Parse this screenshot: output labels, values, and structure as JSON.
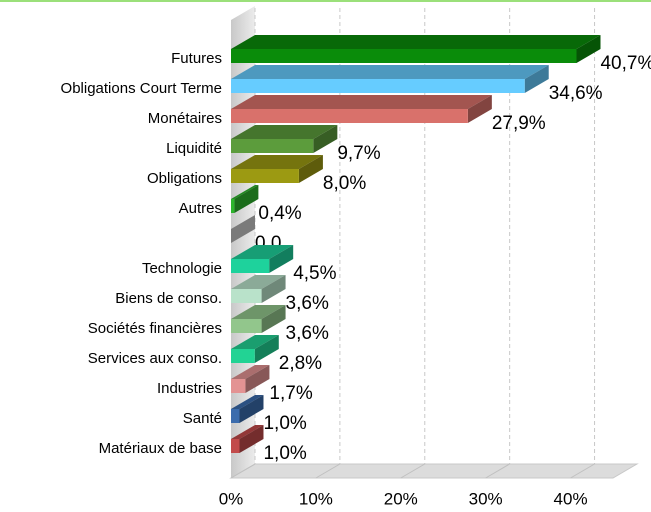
{
  "chart_data": {
    "type": "bar3d_horizontal",
    "categories": [
      "Futures",
      "Obligations Court Terme",
      "Monétaires",
      "Liquidité",
      "Obligations",
      "Autres",
      null,
      "Technologie",
      "Biens de conso.",
      "Sociétés financières",
      "Services aux conso.",
      "Industries",
      "Santé",
      "Matériaux de base"
    ],
    "values": [
      40.7,
      34.6,
      27.9,
      9.7,
      8.0,
      0.4,
      0,
      4.5,
      3.6,
      3.6,
      2.8,
      1.7,
      1.0,
      1.0
    ],
    "value_labels": [
      "40,7%",
      "34,6%",
      "27,9%",
      "9,7%",
      "8,0%",
      "0,4%",
      "0,0",
      "4,5%",
      "3,6%",
      "3,6%",
      "2,8%",
      "1,7%",
      "1,0%",
      "1,0%"
    ],
    "colors": [
      "#0a8c0a",
      "#66ccff",
      "#d9716b",
      "#5c9c3c",
      "#9c9a12",
      "#2db52d",
      "#cccccc",
      "#1ed29c",
      "#b9e2ca",
      "#92c68c",
      "#22d394",
      "#e39393",
      "#3b6cad",
      "#c24b4b"
    ],
    "xlim": [
      0,
      45
    ],
    "xticks": [
      {
        "value": 0,
        "label": "0%"
      },
      {
        "value": 10,
        "label": "10%"
      },
      {
        "value": 20,
        "label": "20%"
      },
      {
        "value": 30,
        "label": "30%"
      },
      {
        "value": 40,
        "label": "40%"
      }
    ],
    "grid": true
  }
}
